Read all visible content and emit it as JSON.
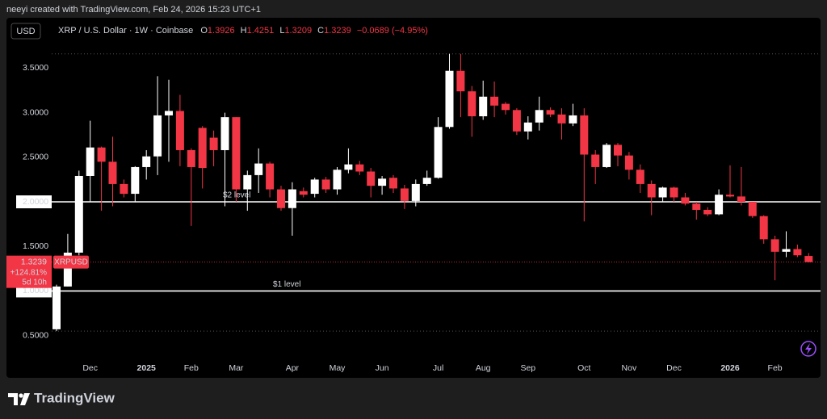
{
  "header": {
    "caption": "neeyi created with TradingView.com, Feb 24, 2026 15:23 UTC+1"
  },
  "footer": {
    "brand": "TradingView"
  },
  "chart_data": {
    "type": "candlestick",
    "currency": "USD",
    "symbol": "XRP / U.S. Dollar · 1W · Coinbase",
    "ohlc_labels": [
      "O",
      "H",
      "L",
      "C"
    ],
    "change": "−0.0689 (−4.95%)",
    "price_tag": {
      "change": "+124.81%",
      "countdown": "5d 10h"
    },
    "up_color": "#ffffff",
    "down_color": "#f23645",
    "categories": [
      null,
      null,
      null,
      "Dec",
      null,
      null,
      null,
      null,
      "2025",
      null,
      null,
      null,
      "Feb",
      null,
      null,
      null,
      "Mar",
      null,
      null,
      null,
      null,
      "Apr",
      null,
      null,
      null,
      "May",
      null,
      null,
      null,
      "Jun",
      null,
      null,
      null,
      null,
      "Jul",
      null,
      null,
      null,
      "Aug",
      null,
      null,
      null,
      "Sep",
      null,
      null,
      null,
      null,
      "Oct",
      null,
      null,
      null,
      "Nov",
      null,
      null,
      null,
      "Dec",
      null,
      null,
      null,
      null,
      "2026",
      null,
      null,
      null,
      "Feb",
      null,
      null,
      null
    ],
    "series": [
      {
        "name": "XRPUSD",
        "open": [
          0.57,
          1.05,
          1.43,
          2.29,
          2.61,
          2.45,
          2.2,
          2.09,
          2.39,
          2.51,
          2.97,
          3.02,
          2.58,
          2.83,
          2.72,
          2.58,
          2.95,
          2.14,
          2.3,
          2.43,
          2.14,
          1.93,
          2.12,
          2.09,
          2.25,
          2.14,
          2.36,
          2.42,
          2.34,
          2.18,
          2.27,
          2.15,
          2.01,
          2.2,
          2.27,
          2.84,
          3.47,
          3.24,
          2.96,
          3.18,
          3.1,
          3.03,
          2.79,
          2.89,
          3.03,
          2.98,
          2.88,
          2.97,
          2.53,
          2.39,
          2.64,
          2.52,
          2.36,
          2.2,
          2.05,
          2.16,
          2.05,
          1.98,
          1.91,
          1.86,
          2.08,
          2.06,
          2.0,
          1.84,
          1.58,
          1.44,
          1.47,
          1.3926
        ],
        "high": [
          1.07,
          1.64,
          2.35,
          2.91,
          2.62,
          2.73,
          2.25,
          2.4,
          2.58,
          3.41,
          3.37,
          3.2,
          2.6,
          2.85,
          2.8,
          3.0,
          2.95,
          2.35,
          2.6,
          2.45,
          2.18,
          2.22,
          2.16,
          2.27,
          2.28,
          2.39,
          2.6,
          2.46,
          2.38,
          2.29,
          2.3,
          2.19,
          2.25,
          2.35,
          2.95,
          3.66,
          3.66,
          3.3,
          3.36,
          3.35,
          3.12,
          3.05,
          2.96,
          3.18,
          3.06,
          3.05,
          3.1,
          3.05,
          2.58,
          2.66,
          2.66,
          2.56,
          2.42,
          2.24,
          2.17,
          2.17,
          2.1,
          2.0,
          1.94,
          2.14,
          2.41,
          2.39,
          2.0,
          1.85,
          1.62,
          1.67,
          1.52,
          1.4251
        ],
        "low": [
          0.55,
          1.05,
          1.4,
          2.0,
          1.9,
          1.95,
          2.05,
          2.0,
          2.25,
          2.3,
          2.45,
          2.4,
          1.73,
          2.15,
          2.4,
          1.95,
          2.0,
          1.9,
          2.1,
          2.05,
          1.9,
          1.62,
          2.05,
          2.05,
          2.1,
          2.08,
          2.32,
          2.3,
          2.05,
          2.08,
          2.1,
          1.92,
          1.95,
          2.18,
          2.26,
          2.82,
          2.95,
          2.73,
          2.92,
          2.95,
          2.98,
          2.75,
          2.7,
          2.8,
          2.95,
          2.7,
          2.85,
          1.78,
          2.2,
          2.38,
          2.4,
          2.25,
          2.1,
          1.85,
          2.0,
          2.0,
          1.96,
          1.8,
          1.84,
          1.85,
          2.05,
          1.96,
          1.82,
          1.53,
          1.12,
          1.38,
          1.38,
          1.3209
        ],
        "close": [
          1.05,
          1.43,
          2.29,
          2.61,
          2.45,
          2.2,
          2.09,
          2.39,
          2.51,
          2.97,
          3.02,
          2.58,
          2.39,
          2.38,
          2.58,
          2.95,
          2.14,
          2.3,
          2.43,
          2.14,
          1.93,
          2.14,
          2.08,
          2.25,
          2.14,
          2.36,
          2.42,
          2.34,
          2.18,
          2.26,
          2.15,
          2.01,
          2.2,
          2.27,
          2.84,
          3.47,
          3.24,
          2.96,
          3.18,
          3.08,
          3.03,
          2.79,
          2.89,
          3.03,
          2.98,
          2.88,
          2.97,
          2.53,
          2.39,
          2.64,
          2.52,
          2.36,
          2.2,
          2.05,
          2.16,
          2.05,
          1.98,
          1.91,
          1.86,
          2.08,
          2.06,
          2.0,
          1.84,
          1.58,
          1.44,
          1.47,
          1.4,
          1.3239
        ]
      }
    ],
    "ylim": [
      0.25,
      4.05
    ],
    "yticks": [
      {
        "value": 0.5,
        "label": "0.5000"
      },
      {
        "value": 1,
        "label": "1.0000"
      },
      {
        "value": 1.5,
        "label": "1.5000"
      },
      {
        "value": 2,
        "label": "2.0000"
      },
      {
        "value": 2.5,
        "label": "2.5000"
      },
      {
        "value": 3,
        "label": "3.0000"
      },
      {
        "value": 3.5,
        "label": "3.5000"
      }
    ],
    "horizontal_lines": [
      {
        "value": 2,
        "label": "$2 level"
      },
      {
        "value": 1,
        "label": "$1 level"
      }
    ]
  }
}
